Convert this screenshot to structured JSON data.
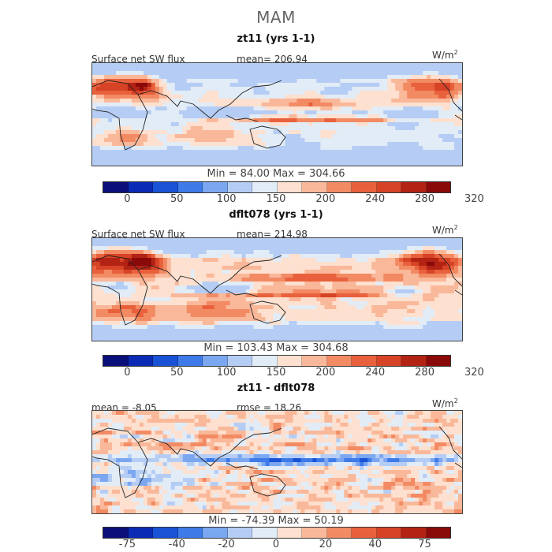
{
  "title": "MAM",
  "colors": {
    "abs_scale": [
      "#0a0f7a",
      "#0b2bb4",
      "#1a52d6",
      "#3f7be8",
      "#7ba6f0",
      "#b5cdf4",
      "#e2ecf7",
      "#fde0cf",
      "#f9b899",
      "#f28a63",
      "#e8613c",
      "#d64326",
      "#b22314",
      "#8a0a0a"
    ],
    "diff_scale": [
      "#0a0f7a",
      "#0b2bb4",
      "#1a52d6",
      "#3f7be8",
      "#7ba6f0",
      "#b5cdf4",
      "#e2ecf7",
      "#fde0cf",
      "#f9b899",
      "#f28a63",
      "#e8613c",
      "#d64326",
      "#b22314",
      "#8a0a0a"
    ],
    "coast": "#222222"
  },
  "chart_data": [
    {
      "type": "heatmap",
      "title": "zt11 (yrs 1-1)",
      "field_label": "Surface net SW flux",
      "mean_text": "mean= 206.94",
      "units": "W/m",
      "units_exp": "2",
      "min": 84.0,
      "max": 304.66,
      "minmax_text": "Min =  84.00 Max = 304.66",
      "colorbar_ticks": [
        "0",
        "50",
        "100",
        "150",
        "200",
        "240",
        "280",
        "320"
      ],
      "pattern": "abs1"
    },
    {
      "type": "heatmap",
      "title": "dflt078 (yrs 1-1)",
      "field_label": "Surface net SW flux",
      "mean_text": "mean= 214.98",
      "units": "W/m",
      "units_exp": "2",
      "min": 103.43,
      "max": 304.68,
      "minmax_text": "Min = 103.43 Max = 304.68",
      "colorbar_ticks": [
        "0",
        "50",
        "100",
        "150",
        "200",
        "240",
        "280",
        "320"
      ],
      "pattern": "abs2"
    },
    {
      "type": "heatmap",
      "title": "zt11 - dflt078",
      "field_label": "mean =  -8.05",
      "mean_text": "rmse =  18.26",
      "units": "W/m",
      "units_exp": "2",
      "min": -74.39,
      "max": 50.19,
      "minmax_text": "Min = -74.39 Max =  50.19",
      "colorbar_ticks": [
        "-75",
        "-40",
        "-20",
        "0",
        "20",
        "40",
        "75"
      ],
      "pattern": "diff"
    }
  ]
}
